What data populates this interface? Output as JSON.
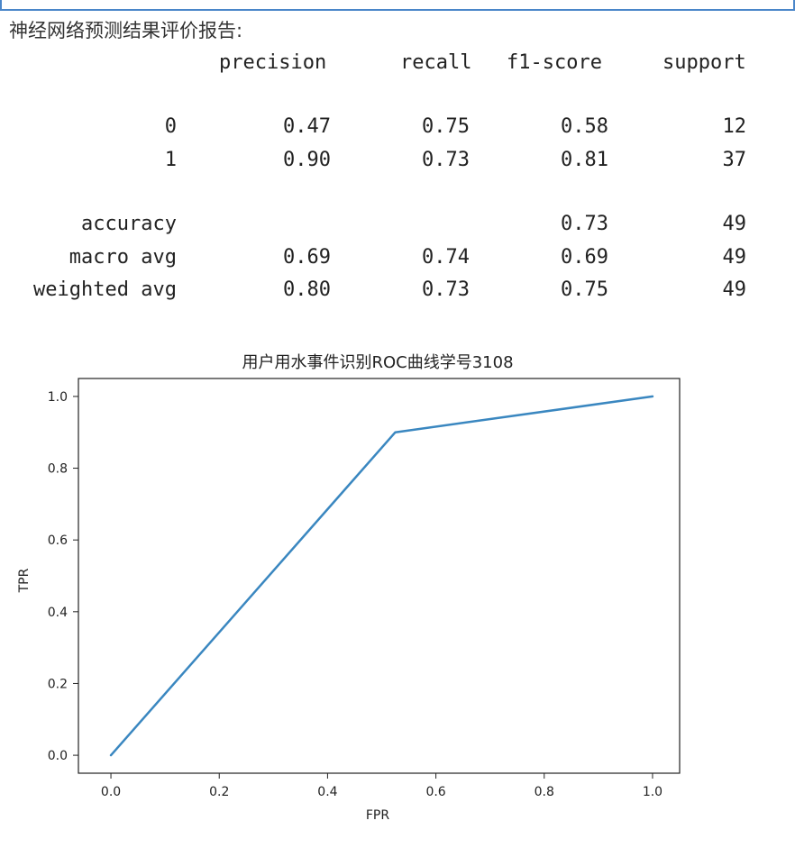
{
  "report": {
    "heading": "神经网络预测结果评价报告:",
    "columns": [
      "precision",
      "recall",
      "f1-score",
      "support"
    ],
    "rows": [
      {
        "label": "0",
        "precision": "0.47",
        "recall": "0.75",
        "f1_score": "0.58",
        "support": "12"
      },
      {
        "label": "1",
        "precision": "0.90",
        "recall": "0.73",
        "f1_score": "0.81",
        "support": "37"
      },
      {
        "label": "accuracy",
        "precision": "",
        "recall": "",
        "f1_score": "0.73",
        "support": "49"
      },
      {
        "label": "macro avg",
        "precision": "0.69",
        "recall": "0.74",
        "f1_score": "0.69",
        "support": "49"
      },
      {
        "label": "weighted avg",
        "precision": "0.80",
        "recall": "0.73",
        "f1_score": "0.75",
        "support": "49"
      }
    ]
  },
  "chart_data": {
    "type": "line",
    "title": "用户用水事件识别ROC曲线学号3108",
    "xlabel": "FPR",
    "ylabel": "TPR",
    "xlim": [
      -0.06,
      1.05
    ],
    "ylim": [
      -0.05,
      1.05
    ],
    "x_ticks": [
      0.0,
      0.2,
      0.4,
      0.6,
      0.8,
      1.0
    ],
    "y_ticks": [
      0.0,
      0.2,
      0.4,
      0.6,
      0.8,
      1.0
    ],
    "x_tick_labels": [
      "0.0",
      "0.2",
      "0.4",
      "0.6",
      "0.8",
      "1.0"
    ],
    "y_tick_labels": [
      "0.0",
      "0.2",
      "0.4",
      "0.6",
      "0.8",
      "1.0"
    ],
    "series": [
      {
        "color": "#3a87c0",
        "x": [
          0.0,
          0.525,
          1.0
        ],
        "y": [
          0.0,
          0.9,
          1.0
        ]
      }
    ],
    "grid": false
  }
}
